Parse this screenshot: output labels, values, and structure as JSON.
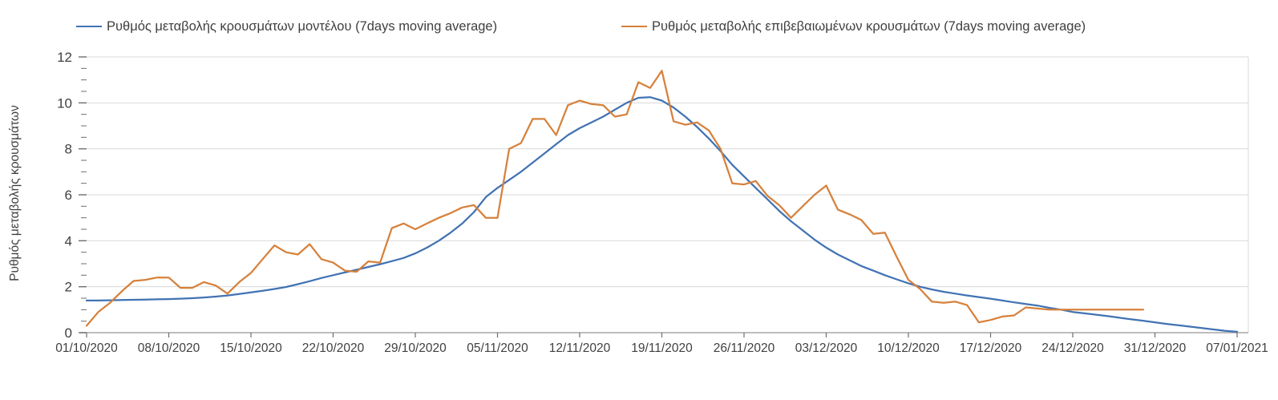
{
  "chart_data": {
    "type": "line",
    "title": "",
    "ylabel": "Ρυθμός μεταβολής κρουσμάτων",
    "xlabel": "",
    "ylim": [
      0,
      12
    ],
    "y_major_ticks": [
      0,
      2,
      4,
      6,
      8,
      10,
      12
    ],
    "y_minor_step": 0.5,
    "grid": "horizontal",
    "legend_position": "top",
    "x_tick_labels": [
      "01/10/2020",
      "08/10/2020",
      "15/10/2020",
      "22/10/2020",
      "29/10/2020",
      "05/11/2020",
      "12/11/2020",
      "19/11/2020",
      "26/11/2020",
      "03/12/2020",
      "10/12/2020",
      "17/12/2020",
      "24/12/2020",
      "31/12/2020",
      "07/01/2021"
    ],
    "x_tick_interval_days": 7,
    "total_days": 98,
    "colors": {
      "model_line": "#4173B3",
      "confirmed_line": "#D6813C",
      "gridline": "#D9D9D9",
      "axis": "#A6A6A6",
      "tick": "#6E6E6E",
      "text": "#404040"
    },
    "series": [
      {
        "name": "Ρυθμός μεταβολής κρουσμάτων μοντέλου (7days moving average)",
        "color": "#4173B3",
        "start_day": 0,
        "values": [
          1.4,
          1.4,
          1.41,
          1.42,
          1.43,
          1.44,
          1.45,
          1.46,
          1.48,
          1.5,
          1.53,
          1.57,
          1.62,
          1.68,
          1.75,
          1.82,
          1.9,
          1.99,
          2.11,
          2.24,
          2.38,
          2.5,
          2.62,
          2.74,
          2.86,
          2.98,
          3.11,
          3.25,
          3.45,
          3.7,
          4.0,
          4.35,
          4.75,
          5.25,
          5.9,
          6.3,
          6.65,
          7.0,
          7.4,
          7.8,
          8.2,
          8.6,
          8.9,
          9.15,
          9.4,
          9.7,
          10.0,
          10.22,
          10.25,
          10.1,
          9.8,
          9.4,
          8.95,
          8.45,
          7.9,
          7.3,
          6.8,
          6.3,
          5.8,
          5.3,
          4.85,
          4.45,
          4.05,
          3.7,
          3.4,
          3.15,
          2.9,
          2.7,
          2.5,
          2.32,
          2.15,
          2.0,
          1.88,
          1.78,
          1.7,
          1.62,
          1.55,
          1.48,
          1.4,
          1.32,
          1.25,
          1.18,
          1.08,
          1.0,
          0.9,
          0.84,
          0.78,
          0.72,
          0.65,
          0.58,
          0.52,
          0.45,
          0.38,
          0.32,
          0.26,
          0.2,
          0.14,
          0.08,
          0.04
        ]
      },
      {
        "name": "Ρυθμός μεταβολής επιβεβαιωμένων κρουσμάτων (7days moving average)",
        "color": "#D6813C",
        "start_day": 0,
        "values": [
          0.3,
          0.9,
          1.3,
          1.8,
          2.25,
          2.3,
          2.4,
          2.4,
          1.95,
          1.95,
          2.2,
          2.05,
          1.7,
          2.2,
          2.6,
          3.2,
          3.8,
          3.5,
          3.4,
          3.85,
          3.2,
          3.05,
          2.7,
          2.65,
          3.1,
          3.05,
          4.55,
          4.75,
          4.5,
          4.75,
          5.0,
          5.2,
          5.45,
          5.55,
          5.0,
          5.0,
          8.0,
          8.25,
          9.3,
          9.3,
          8.6,
          9.9,
          10.1,
          9.95,
          9.9,
          9.4,
          9.5,
          10.9,
          10.65,
          11.4,
          9.2,
          9.05,
          9.15,
          8.8,
          8.0,
          6.5,
          6.45,
          6.6,
          5.95,
          5.55,
          5.0,
          5.5,
          6.0,
          6.4,
          5.35,
          5.15,
          4.9,
          4.3,
          4.35,
          3.3,
          2.3,
          1.9,
          1.35,
          1.3,
          1.35,
          1.2,
          0.45,
          0.55,
          0.7,
          0.75,
          1.1,
          1.05,
          1.0,
          1.0,
          1.0,
          1.0,
          1.0,
          1.0,
          1.0,
          1.0,
          1.0
        ]
      }
    ]
  }
}
